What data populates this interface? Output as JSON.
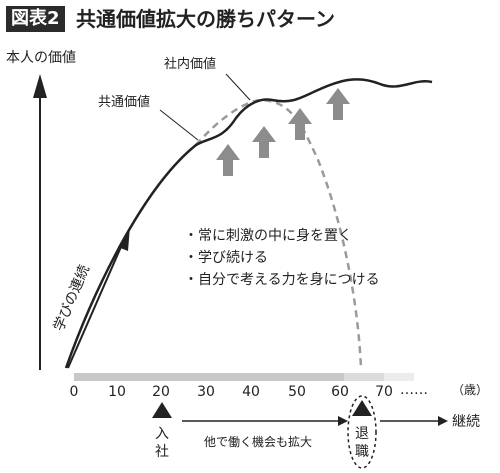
{
  "figure": {
    "tag": "図表2",
    "title": "共通価値拡大の勝ちパターン"
  },
  "axis": {
    "y_label": "本人の価値",
    "x_ticks": [
      "0",
      "10",
      "20",
      "30",
      "40",
      "50",
      "60",
      "70",
      "……"
    ],
    "x_unit": "（歳）"
  },
  "curves": {
    "shared_value": "共通価値",
    "company_value": "社内価値"
  },
  "learning_arrow": "学びの連続",
  "bullets": [
    "・常に刺激の中に身を置く",
    "・学び続ける",
    "・自分で考える力を身につける"
  ],
  "timeline": {
    "join": "入社",
    "retire": "退職",
    "middle": "他で働く機会も拡大",
    "end": "継続"
  },
  "colors": {
    "ink": "#222222",
    "gray_arrow": "#8c8c8c",
    "dashed_curve": "#9a9a9a",
    "axis_band": "#c8c8c8"
  }
}
